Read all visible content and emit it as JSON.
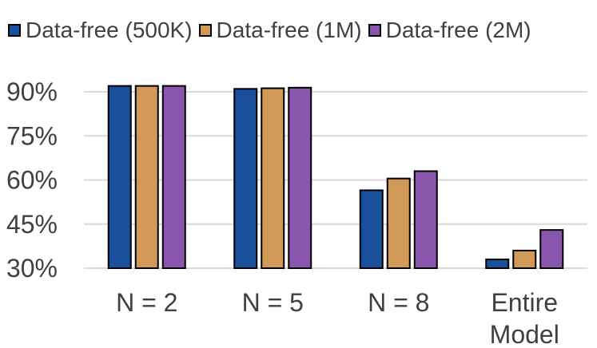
{
  "chart_data": {
    "type": "bar",
    "categories": [
      "N = 2",
      "N = 5",
      "N = 8",
      "Entire Model"
    ],
    "series": [
      {
        "name": "Data-free (500K)",
        "values": [
          92.0,
          91.0,
          56.5,
          33.0
        ],
        "color": "#1a4f9c"
      },
      {
        "name": "Data-free (1M)",
        "values": [
          92.0,
          91.2,
          60.5,
          36.0
        ],
        "color": "#d09a56"
      },
      {
        "name": "Data-free (2M)",
        "values": [
          92.0,
          91.4,
          63.0,
          43.0
        ],
        "color": "#8a56ad"
      }
    ],
    "ylim": [
      30,
      95
    ],
    "yticks": [
      30,
      45,
      60,
      75,
      90
    ],
    "ytick_labels": [
      "30%",
      "45%",
      "60%",
      "75%",
      "90%"
    ],
    "grid": true,
    "legend_position": "top",
    "xlabel": "",
    "ylabel": ""
  }
}
